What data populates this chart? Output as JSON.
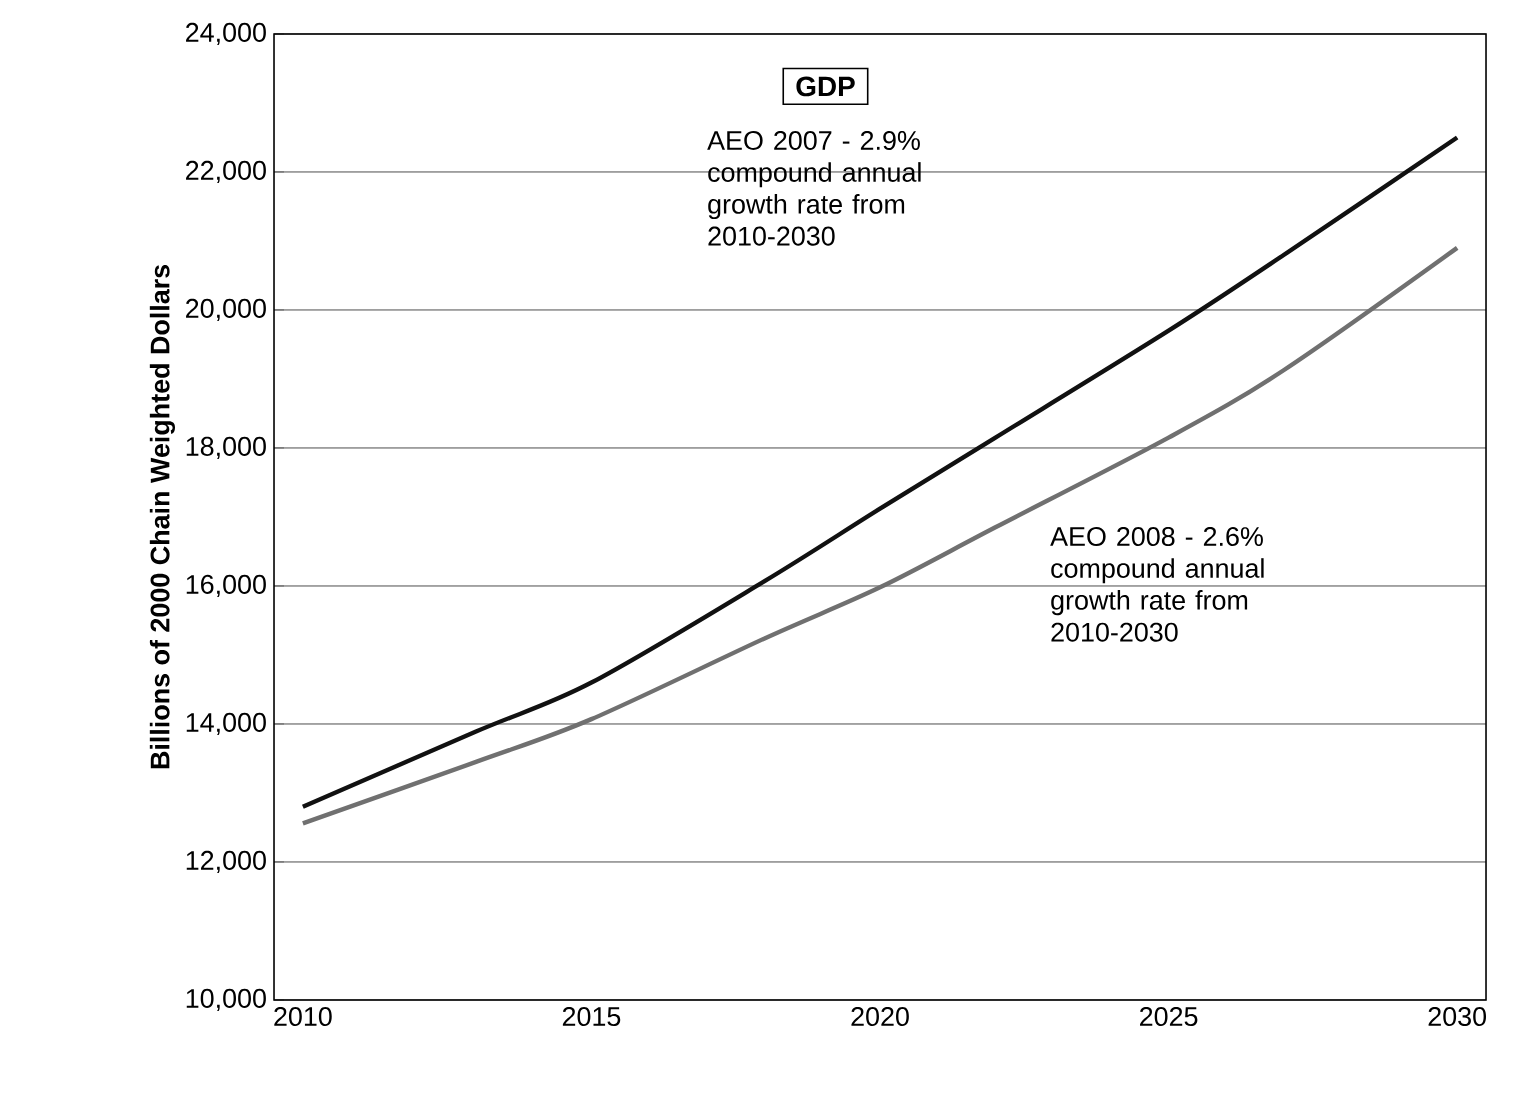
{
  "chart_data": {
    "type": "line",
    "title": "GDP",
    "ylabel": "Billions of 2000 Chain Weighted Dollars",
    "x": [
      2010,
      2013,
      2015,
      2018,
      2020,
      2022,
      2025,
      2027,
      2030
    ],
    "series": [
      {
        "color": "#111111",
        "values": [
          12800,
          13890,
          14600,
          16070,
          17120,
          18150,
          19700,
          20800,
          22500
        ]
      },
      {
        "color": "#707070",
        "values": [
          12560,
          13450,
          14070,
          15240,
          15980,
          16850,
          18150,
          19130,
          20900
        ]
      }
    ],
    "annotations": [
      "AEO 2007 - 2.9% compound annual growth rate from 2010-2030",
      "AEO 2008 - 2.6% compound annual growth rate from 2010-2030"
    ],
    "xlim": [
      2009.5,
      2030.5
    ],
    "xticks": [
      2010,
      2015,
      2020,
      2025,
      2030
    ],
    "ylim": [
      10000,
      24000
    ],
    "yticks": [
      {
        "value": 10000,
        "label": "10,000"
      },
      {
        "value": 12000,
        "label": "12,000"
      },
      {
        "value": 14000,
        "label": "14,000"
      },
      {
        "value": 16000,
        "label": "16,000"
      },
      {
        "value": 18000,
        "label": "18,000"
      },
      {
        "value": 20000,
        "label": "20,000"
      },
      {
        "value": 22000,
        "label": "22,000"
      },
      {
        "value": 24000,
        "label": "24,000"
      }
    ],
    "grid": "y",
    "marker": "none",
    "line_style": "solid"
  }
}
